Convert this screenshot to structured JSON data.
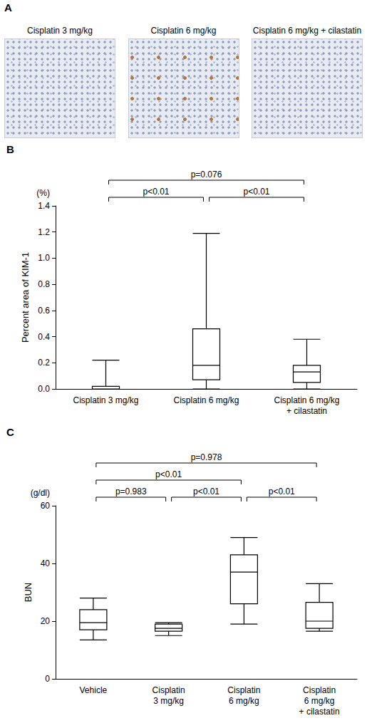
{
  "chart_data": [
    {
      "panel": "A",
      "type": "image",
      "titles": [
        "Cisplatin 3 mg/kg",
        "Cisplatin 6 mg/kg",
        "Cisplatin 6 mg/kg + cilastatin"
      ]
    },
    {
      "panel": "B",
      "type": "boxplot",
      "categories": [
        "Cisplatin 3 mg/kg",
        "Cisplatin 6 mg/kg",
        "Cisplatin 6 mg/kg + cilastatin"
      ],
      "values": [
        [
          0,
          0,
          0,
          0.02,
          0.22
        ],
        [
          0,
          0.07,
          0.18,
          0.46,
          1.19
        ],
        [
          0,
          0.05,
          0.13,
          0.18,
          0.38
        ]
      ],
      "ylabel": "Percent area of KIM-1",
      "yunit": "(%)",
      "ylim": [
        0,
        1.4
      ],
      "yticks": [
        {
          "value": 0,
          "label": "0.0"
        },
        {
          "value": 0.2,
          "label": "0.2"
        },
        {
          "value": 0.4,
          "label": "0.4"
        },
        {
          "value": 0.6,
          "label": "0.6"
        },
        {
          "value": 0.8,
          "label": "0.8"
        },
        {
          "value": 1,
          "label": "1.0"
        },
        {
          "value": 1.2,
          "label": "1.2"
        },
        {
          "value": 1.4,
          "label": "1.4"
        }
      ],
      "color": "#000000",
      "grid": false,
      "annotations": [
        {
          "from": "Cisplatin 3 mg/kg",
          "to": "Cisplatin 6 mg/kg",
          "label": "p<0.01"
        },
        {
          "from": "Cisplatin 6 mg/kg",
          "to": "Cisplatin 6 mg/kg + cilastatin",
          "label": "p<0.01"
        },
        {
          "from": "Cisplatin 3 mg/kg",
          "to": "Cisplatin 6 mg/kg + cilastatin",
          "label": "p=0.076"
        }
      ]
    },
    {
      "panel": "C",
      "type": "boxplot",
      "categories": [
        "Vehicle",
        "Cisplatin 3 mg/kg",
        "Cisplatin 6 mg/kg",
        "Cisplatin 6 mg/kg + cilastatin"
      ],
      "values": [
        [
          13.5,
          17,
          19.5,
          24,
          28
        ],
        [
          15,
          16.5,
          17.5,
          19,
          19.5
        ],
        [
          19,
          26,
          37,
          43,
          49
        ],
        [
          16.5,
          17.5,
          20,
          26.5,
          33
        ]
      ],
      "ylabel": "BUN",
      "yunit": "(g/dl)",
      "ylim": [
        0,
        60
      ],
      "yticks": [
        0,
        20,
        40,
        60
      ],
      "color": "#000000",
      "grid": false,
      "annotations": [
        {
          "from": "Vehicle",
          "to": "Cisplatin 3 mg/kg",
          "label": "p=0.983"
        },
        {
          "from": "Cisplatin 3 mg/kg",
          "to": "Cisplatin 6 mg/kg",
          "label": "p<0.01"
        },
        {
          "from": "Cisplatin 6 mg/kg",
          "to": "Cisplatin 6 mg/kg + cilastatin",
          "label": "p<0.01"
        },
        {
          "from": "Vehicle",
          "to": "Cisplatin 6 mg/kg",
          "label": "p<0.01"
        },
        {
          "from": "Vehicle",
          "to": "Cisplatin 6 mg/kg + cilastatin",
          "label": "p=0.978"
        }
      ]
    }
  ]
}
